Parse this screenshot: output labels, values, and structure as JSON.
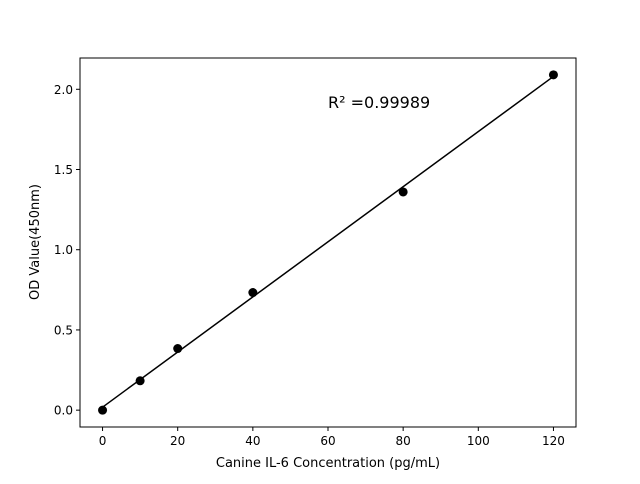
{
  "chart_data": {
    "type": "scatter",
    "title": "",
    "xlabel": "Canine IL-6 Concentration (pg/mL)",
    "ylabel": "OD Value(450nm)",
    "xlim": [
      -6,
      126
    ],
    "ylim": [
      -0.105,
      2.195
    ],
    "xticks": [
      0,
      20,
      40,
      60,
      80,
      100,
      120
    ],
    "yticks": [
      0.0,
      0.5,
      1.0,
      1.5,
      2.0
    ],
    "xtick_labels": [
      "0",
      "20",
      "40",
      "60",
      "80",
      "100",
      "120"
    ],
    "ytick_labels": [
      "0.0",
      "0.5",
      "1.0",
      "1.5",
      "2.0"
    ],
    "grid": false,
    "series": [
      {
        "x": [
          0,
          10,
          20,
          40,
          80,
          120
        ],
        "y": [
          0.0,
          0.183,
          0.384,
          0.733,
          1.36,
          2.09
        ],
        "color": "#000000",
        "marker": "circle"
      }
    ],
    "fit_line": {
      "type": "linear",
      "color": "#000000"
    },
    "annotation": "R² =0.99989"
  }
}
